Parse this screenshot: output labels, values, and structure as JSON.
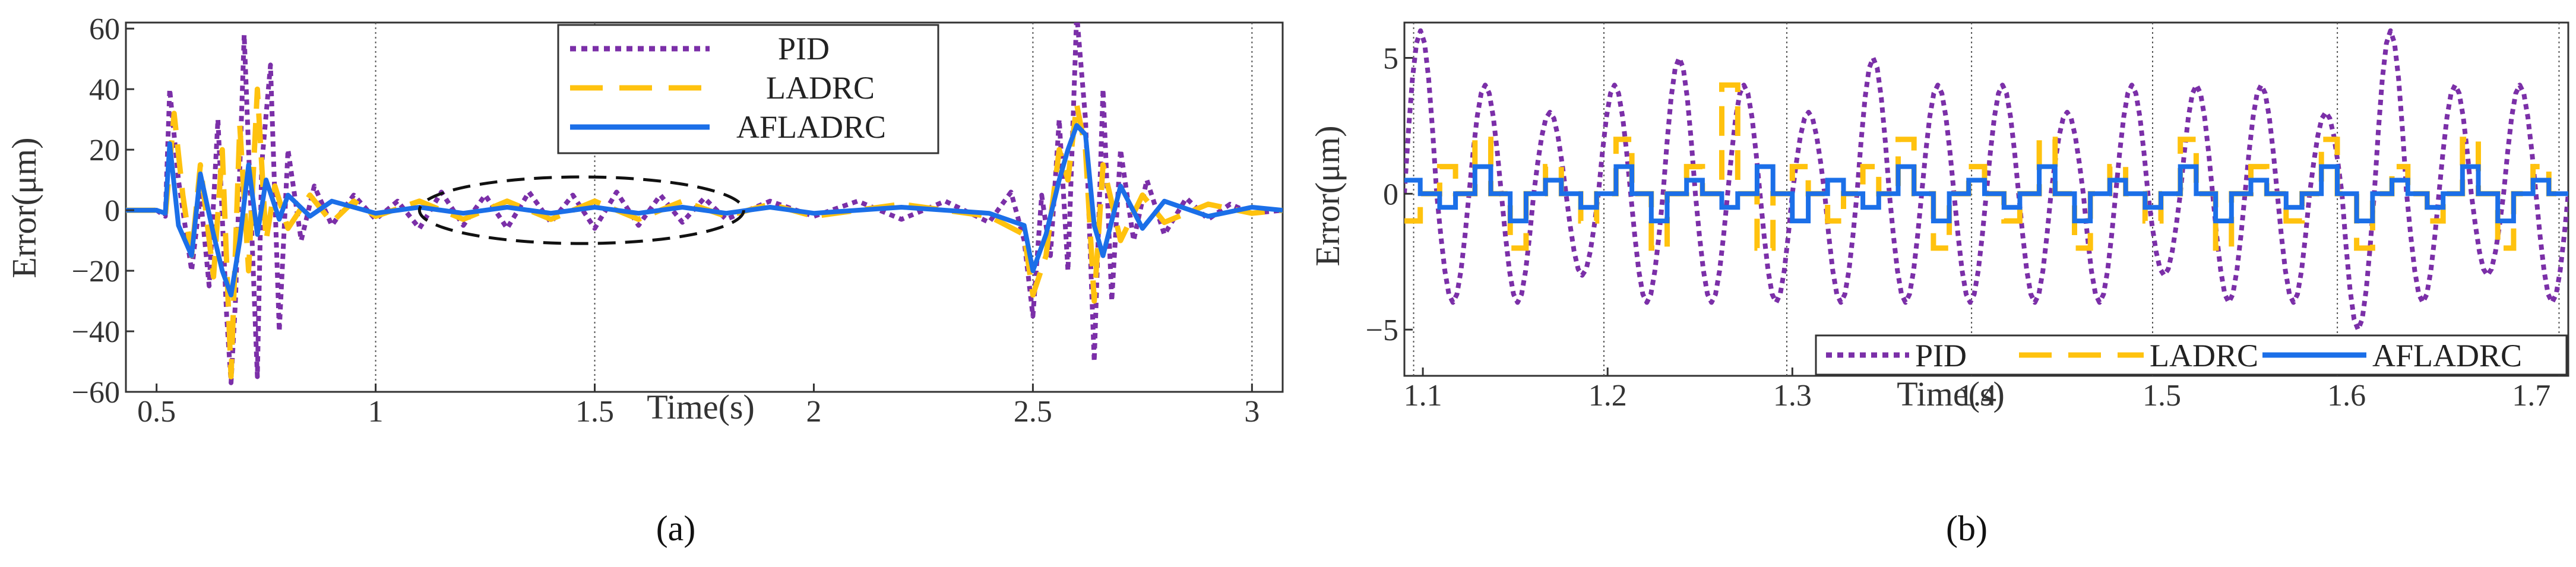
{
  "colors": {
    "pid": "#7B2FA8",
    "ladrc": "#FFC20E",
    "afladrc": "#1B6FE8"
  },
  "chart_data": [
    {
      "type": "line",
      "caption": "(a)",
      "xlabel": "Time(s)",
      "ylabel": "Error(μm)",
      "xlim": [
        0.43,
        3.07
      ],
      "ylim": [
        -60,
        62
      ],
      "xticks": [
        0.5,
        1,
        1.5,
        2,
        2.5,
        3
      ],
      "xtick_labels": [
        "0.5",
        "1",
        "1.5",
        "2",
        "2.5",
        "3"
      ],
      "yticks": [
        -60,
        -40,
        -20,
        0,
        20,
        40,
        60
      ],
      "ytick_labels": [
        "−60",
        "−40",
        "−20",
        "0",
        "20",
        "40",
        "60"
      ],
      "gridlines_x": [
        1.0,
        1.5,
        2.5,
        3.0
      ],
      "legend": {
        "position": "top-center",
        "entries": [
          "PID",
          "LADRC",
          "AFLADRC"
        ]
      },
      "annotation": {
        "shape": "dashed-ellipse",
        "x_center": 1.47,
        "y_center": 0,
        "x_halfwidth": 0.37,
        "y_halfheight": 11
      },
      "series": [
        {
          "name": "PID",
          "style": "dotted",
          "x": [
            0.43,
            0.5,
            0.52,
            0.53,
            0.55,
            0.58,
            0.6,
            0.62,
            0.64,
            0.66,
            0.67,
            0.68,
            0.7,
            0.71,
            0.73,
            0.74,
            0.76,
            0.78,
            0.8,
            0.83,
            0.86,
            0.9,
            0.95,
            1.0,
            1.05,
            1.1,
            1.15,
            1.2,
            1.25,
            1.3,
            1.35,
            1.4,
            1.45,
            1.5,
            1.55,
            1.6,
            1.65,
            1.7,
            1.75,
            1.8,
            1.9,
            2.0,
            2.1,
            2.2,
            2.3,
            2.4,
            2.45,
            2.48,
            2.5,
            2.52,
            2.54,
            2.56,
            2.58,
            2.6,
            2.62,
            2.64,
            2.66,
            2.68,
            2.7,
            2.73,
            2.76,
            2.8,
            2.85,
            2.9,
            2.95,
            3.0,
            3.07
          ],
          "values": [
            0,
            0,
            -2,
            40,
            10,
            -20,
            5,
            -25,
            30,
            -35,
            -57,
            -30,
            58,
            20,
            -55,
            15,
            48,
            -40,
            20,
            -10,
            8,
            -5,
            5,
            -3,
            3,
            -6,
            6,
            -5,
            5,
            -6,
            6,
            -4,
            5,
            -6,
            6,
            -5,
            5,
            -4,
            4,
            -3,
            3,
            -2,
            3,
            -3,
            3,
            -4,
            6,
            -10,
            -35,
            5,
            -15,
            30,
            -20,
            65,
            30,
            -50,
            40,
            -30,
            20,
            -10,
            10,
            -8,
            4,
            -3,
            2,
            -1,
            0
          ]
        },
        {
          "name": "LADRC",
          "style": "dashed",
          "x": [
            0.43,
            0.5,
            0.52,
            0.54,
            0.56,
            0.58,
            0.6,
            0.63,
            0.65,
            0.67,
            0.69,
            0.71,
            0.73,
            0.75,
            0.77,
            0.8,
            0.85,
            0.9,
            0.95,
            1.0,
            1.1,
            1.2,
            1.3,
            1.4,
            1.5,
            1.6,
            1.7,
            1.8,
            1.9,
            2.0,
            2.2,
            2.4,
            2.48,
            2.5,
            2.53,
            2.56,
            2.58,
            2.6,
            2.62,
            2.64,
            2.66,
            2.7,
            2.75,
            2.8,
            2.9,
            3.0,
            3.07
          ],
          "values": [
            0,
            0,
            -2,
            32,
            5,
            -15,
            15,
            -22,
            20,
            -55,
            28,
            -20,
            40,
            -10,
            8,
            -6,
            5,
            -4,
            3,
            -2,
            3,
            -3,
            3,
            -3,
            3,
            -3,
            3,
            -2,
            2,
            -2,
            2,
            -2,
            -8,
            -28,
            -15,
            20,
            10,
            35,
            20,
            -30,
            15,
            -10,
            5,
            -4,
            2,
            -1,
            0
          ]
        },
        {
          "name": "AFLADRC",
          "style": "solid",
          "x": [
            0.43,
            0.5,
            0.52,
            0.53,
            0.55,
            0.58,
            0.6,
            0.63,
            0.65,
            0.67,
            0.69,
            0.71,
            0.73,
            0.75,
            0.78,
            0.8,
            0.85,
            0.9,
            1.0,
            1.1,
            1.2,
            1.3,
            1.4,
            1.5,
            1.6,
            1.7,
            1.8,
            1.9,
            2.0,
            2.2,
            2.4,
            2.48,
            2.5,
            2.53,
            2.56,
            2.58,
            2.6,
            2.62,
            2.64,
            2.66,
            2.7,
            2.75,
            2.8,
            2.9,
            3.0,
            3.07
          ],
          "values": [
            0,
            0,
            -1,
            22,
            -5,
            -15,
            12,
            -8,
            -20,
            -28,
            -10,
            15,
            -8,
            10,
            -3,
            5,
            -2,
            3,
            -1,
            1,
            -1,
            1,
            -1,
            1,
            -1,
            1,
            -1,
            1,
            -1,
            1,
            -1,
            -5,
            -20,
            -8,
            10,
            20,
            28,
            25,
            -5,
            -15,
            8,
            -6,
            3,
            -2,
            1,
            0
          ]
        }
      ]
    },
    {
      "type": "line",
      "caption": "(b)",
      "xlabel": "Time(s)",
      "ylabel": "Error(μm)",
      "xlim": [
        1.09,
        1.72
      ],
      "ylim": [
        -6.7,
        6.3
      ],
      "xticks": [
        1.1,
        1.2,
        1.3,
        1.4,
        1.5,
        1.6,
        1.7
      ],
      "xtick_labels": [
        "1.1",
        "1.2",
        "1.3",
        "1.4",
        "1.5",
        "1.6",
        "1.7"
      ],
      "yticks": [
        -5,
        0,
        5
      ],
      "ytick_labels": [
        "−5",
        "0",
        "5"
      ],
      "gridlines_x": [
        1.095,
        1.198,
        1.297,
        1.397,
        1.495,
        1.595,
        1.715
      ],
      "legend": {
        "position": "bottom-right",
        "entries": [
          "PID",
          "LADRC",
          "AFLADRC"
        ]
      },
      "series": [
        {
          "name": "PID",
          "style": "dotted",
          "period": 0.02,
          "amplitude": 4.0,
          "values_peak": [
            6,
            -4,
            4,
            -4,
            3,
            -3,
            4,
            -4,
            5,
            -4,
            4,
            -4,
            3,
            -4,
            5,
            -4,
            4,
            -4,
            4,
            -4,
            3,
            -4,
            4,
            -3,
            4,
            -4,
            4,
            -4,
            3,
            -5,
            6,
            -4,
            4,
            -3,
            4,
            -4
          ]
        },
        {
          "name": "LADRC",
          "style": "dashed",
          "levels": [
            -1,
            1,
            2,
            -2,
            1,
            -1,
            2,
            -2,
            1,
            4,
            -2,
            1,
            -1,
            1,
            2,
            -2,
            1,
            -1,
            2,
            -2,
            1,
            -1,
            2,
            -2,
            1,
            -1,
            2,
            -2,
            1,
            -1,
            2,
            -2,
            1
          ]
        },
        {
          "name": "AFLADRC",
          "style": "solid",
          "levels": [
            0.5,
            -0.5,
            1,
            -1,
            0.5,
            -0.5,
            1,
            -1,
            0.5,
            -0.5,
            1,
            -1,
            0.5,
            -0.5,
            1,
            -1,
            0.5,
            -0.5,
            1,
            -1,
            0.5,
            -0.5,
            1,
            -1,
            0.5,
            -0.5,
            1,
            -1,
            0.5,
            -0.5,
            1,
            -1,
            0.5
          ]
        }
      ]
    }
  ]
}
